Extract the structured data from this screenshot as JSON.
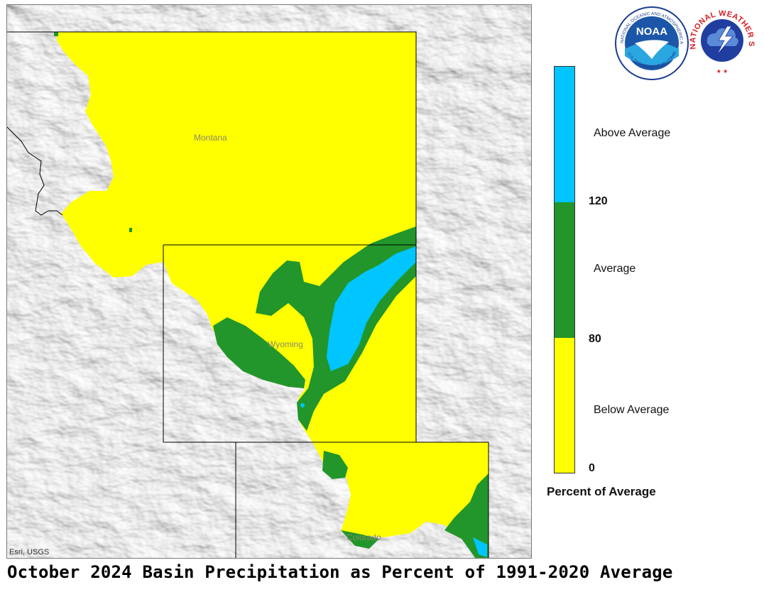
{
  "title": "October 2024 Basin Precipitation as Percent of 1991-2020 Average",
  "map": {
    "credit": "Esri, USGS",
    "state_labels": [
      {
        "name": "Montana"
      },
      {
        "name": "Wyoming"
      },
      {
        "name": "Colorado"
      }
    ]
  },
  "legend": {
    "unit_label": "Percent of Average",
    "classes": [
      {
        "label": "Above Average",
        "color": "#00c5ff",
        "range": [
          120,
          null
        ]
      },
      {
        "label": "Average",
        "color": "#22962a",
        "range": [
          80,
          120
        ]
      },
      {
        "label": "Below Average",
        "color": "#ffff00",
        "range": [
          0,
          80
        ]
      }
    ],
    "ticks": [
      "120",
      "80",
      "0"
    ]
  },
  "logos": {
    "noaa": {
      "icon": "noaa-logo-icon",
      "text": "NOAA",
      "ring_text": "NATIONAL OCEANIC AND ATMOSPHERIC ADMINISTRATION",
      "ring_text_bottom": "U.S. DEPARTMENT OF COMMERCE"
    },
    "nws": {
      "icon": "nws-logo-icon",
      "ring_text": "NATIONAL WEATHER SERVICE"
    }
  }
}
